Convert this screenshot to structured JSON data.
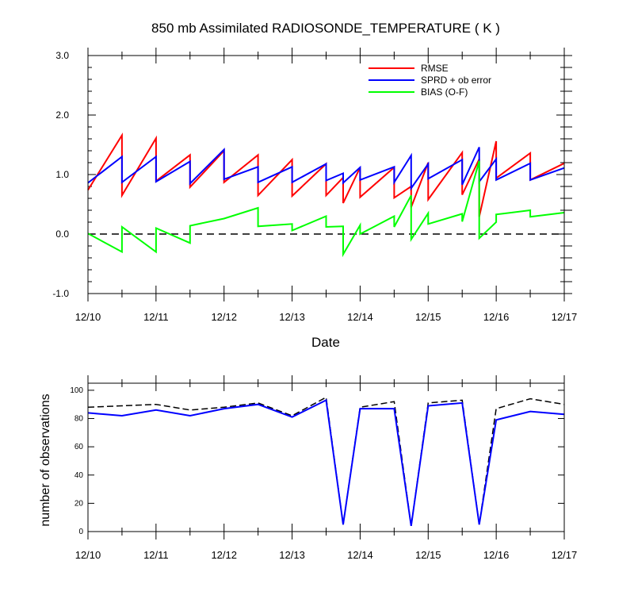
{
  "chart_data": [
    {
      "type": "line",
      "title": "850 mb Assimilated RADIOSONDE_TEMPERATURE ( K )",
      "xlabel": "Date",
      "ylabel": "",
      "xlim": [
        0,
        7
      ],
      "ylim": [
        -1.0,
        3.0
      ],
      "xticks": [
        0,
        1,
        2,
        3,
        4,
        5,
        6,
        7
      ],
      "xtick_labels": [
        "12/10",
        "12/11",
        "12/12",
        "12/13",
        "12/14",
        "12/15",
        "12/16",
        "12/17"
      ],
      "yticks": [
        -1.0,
        0.0,
        1.0,
        2.0,
        3.0
      ],
      "ytick_labels": [
        "-1.0",
        "0.0",
        "1.0",
        "2.0",
        "3.0"
      ],
      "legend_position": "top-right",
      "reference_line": {
        "y": 0.0,
        "style": "dashed",
        "color": "#000000"
      },
      "series": [
        {
          "name": "RMSE",
          "color": "#ff0000",
          "x": [
            0,
            0.5,
            0.5,
            1,
            1,
            1.5,
            1.5,
            2,
            2,
            2.5,
            2.5,
            3,
            3,
            3.5,
            3.5,
            3.75,
            3.75,
            4,
            4,
            4.5,
            4.5,
            4.75,
            4.75,
            5,
            5,
            5.5,
            5.5,
            5.75,
            5.75,
            6,
            6,
            6.5,
            6.5,
            7
          ],
          "values": [
            0.74,
            1.66,
            0.65,
            1.61,
            0.89,
            1.33,
            0.79,
            1.4,
            0.87,
            1.33,
            0.65,
            1.25,
            0.64,
            1.18,
            0.65,
            0.95,
            0.52,
            1.12,
            0.62,
            1.12,
            0.61,
            0.8,
            0.45,
            1.2,
            0.58,
            1.37,
            0.66,
            1.26,
            0.29,
            1.56,
            0.94,
            1.36,
            0.91,
            1.19
          ]
        },
        {
          "name": "SPRD + ob error",
          "color": "#0000ff",
          "x": [
            0,
            0.5,
            0.5,
            1,
            1,
            1.5,
            1.5,
            2,
            2,
            2.5,
            2.5,
            3,
            3,
            3.5,
            3.5,
            3.75,
            3.75,
            4,
            4,
            4.5,
            4.5,
            4.75,
            4.75,
            5,
            5,
            5.5,
            5.5,
            5.75,
            5.75,
            6,
            6,
            6.5,
            6.5,
            7
          ],
          "values": [
            0.86,
            1.3,
            0.87,
            1.3,
            0.88,
            1.22,
            0.85,
            1.42,
            0.92,
            1.13,
            0.87,
            1.13,
            0.87,
            1.18,
            0.9,
            1.02,
            0.86,
            1.12,
            0.91,
            1.13,
            0.87,
            1.32,
            0.77,
            1.18,
            0.93,
            1.25,
            0.83,
            1.46,
            0.88,
            1.26,
            0.91,
            1.19,
            0.91,
            1.11
          ]
        },
        {
          "name": "BIAS (O-F)",
          "color": "#00ff00",
          "x": [
            0,
            0.5,
            0.5,
            1,
            1,
            1.5,
            1.5,
            2,
            2,
            2.5,
            2.5,
            3,
            3,
            3.5,
            3.5,
            3.75,
            3.75,
            4,
            4,
            4.5,
            4.5,
            4.75,
            4.75,
            5,
            5,
            5.5,
            5.5,
            5.75,
            5.75,
            6,
            6,
            6.5,
            6.5,
            7
          ],
          "values": [
            0.01,
            -0.3,
            0.12,
            -0.3,
            0.1,
            -0.15,
            0.14,
            0.26,
            0.26,
            0.44,
            0.13,
            0.17,
            0.06,
            0.3,
            0.12,
            0.13,
            -0.34,
            0.15,
            0.0,
            0.3,
            0.12,
            0.65,
            -0.09,
            0.35,
            0.17,
            0.34,
            0.21,
            1.23,
            -0.07,
            0.2,
            0.33,
            0.4,
            0.29,
            0.36
          ]
        }
      ]
    },
    {
      "type": "line",
      "title": "",
      "xlabel": "",
      "ylabel": "number of observations",
      "xlim": [
        0,
        7
      ],
      "ylim": [
        0,
        105
      ],
      "xticks": [
        0,
        1,
        2,
        3,
        4,
        5,
        6,
        7
      ],
      "xtick_labels": [
        "12/10",
        "12/11",
        "12/12",
        "12/13",
        "12/14",
        "12/15",
        "12/16",
        "12/17"
      ],
      "yticks": [
        0,
        20,
        40,
        60,
        80,
        100
      ],
      "ytick_labels": [
        "0",
        "20",
        "40",
        "60",
        "80",
        "100"
      ],
      "series": [
        {
          "color": "#000000",
          "style": "dashed",
          "x": [
            0,
            0.5,
            1,
            1.5,
            2,
            2.5,
            3,
            3.5,
            3.75,
            4,
            4.5,
            4.75,
            5,
            5.5,
            5.75,
            6,
            6.5,
            7
          ],
          "values": [
            88,
            89,
            90,
            86,
            88,
            91,
            82,
            95,
            5,
            88,
            92,
            4,
            91,
            93,
            5,
            87,
            94,
            90
          ]
        },
        {
          "color": "#0000ff",
          "style": "solid",
          "x": [
            0,
            0.5,
            1,
            1.5,
            2,
            2.5,
            3,
            3.5,
            3.75,
            4,
            4.5,
            4.75,
            5,
            5.5,
            5.75,
            6,
            6.5,
            7
          ],
          "values": [
            84,
            82,
            86,
            82,
            87,
            90,
            81,
            93,
            5,
            87,
            87,
            4,
            89,
            91,
            5,
            79,
            85,
            83
          ]
        }
      ]
    }
  ]
}
